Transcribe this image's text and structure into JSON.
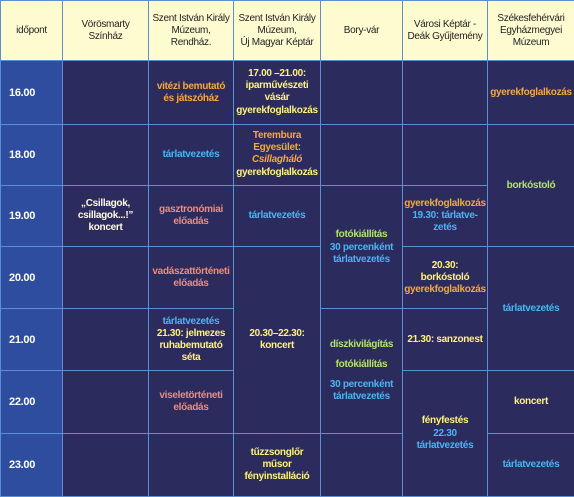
{
  "table": {
    "header": [
      "időpont",
      "Vörösmarty\nSzínház",
      "Szent István Király\nMúzeum,\nRendház.",
      "Szent István Király\nMúzeum,\nÚj Magyar Képtár",
      "Bory-vár",
      "Városi Képtár -\nDeák Gyűjtemény",
      "Székesfehérvári\nEgyházmegyei\nMúzeum"
    ],
    "rows": [
      {
        "time": "16.00",
        "cells": [
          [
            "vitézi bemutató\nés játszóház"
          ],
          [
            "17.00 –21.00:\niparművészeti\nvásár",
            "gyerekfoglalkozás"
          ],
          [
            "gyerekfoglalkozás"
          ]
        ]
      },
      {
        "time": "18.00",
        "cells": [
          [
            "tárlatvezetés"
          ],
          [
            "Terembura Egyesület:",
            "Csillagháló",
            "gyerekfoglalkozás"
          ],
          [
            "borkóstoló"
          ]
        ]
      },
      {
        "time": "19.00",
        "cells": [
          [
            "„Csillagok,\ncsillagok...!”\nkoncert"
          ],
          [
            "gasztronómiai\nelőadás"
          ],
          [
            "tárlatvezetés"
          ],
          [
            "fotókiállítás",
            "30 percenként\ntárlatvezetés"
          ],
          [
            "gyerekfoglalkozás",
            "19.30: tárlatve-\nzetés"
          ]
        ]
      },
      {
        "time": "20.00",
        "cells": [
          [
            "vadászattörténeti\nelőadás"
          ],
          [
            "20.30–22.30:\nkoncert"
          ],
          [
            "20.30:\nborkóstoló",
            "gyerekfoglalkozás"
          ],
          [
            "tárlatvezetés"
          ]
        ]
      },
      {
        "time": "21.00",
        "cells": [
          [
            "tárlatvezetés",
            "21.30: jelmezes\nruhabemutató\nséta"
          ],
          [
            "díszkivilágítás",
            "fotókiállítás",
            "30 percenként\ntárlatvezetés"
          ],
          [
            "21.30: sanzonest"
          ]
        ]
      },
      {
        "time": "22.00",
        "cells": [
          [
            "viseletörténeti\nelőadás"
          ],
          [
            "fényfestés",
            "22.30\ntárlatvezetés"
          ],
          [
            "koncert"
          ]
        ]
      },
      {
        "time": "23.00",
        "cells": [
          [
            "tűzzsonglőr műsor\nfényinstalláció"
          ],
          [
            "tárlatvezetés"
          ]
        ]
      }
    ]
  }
}
